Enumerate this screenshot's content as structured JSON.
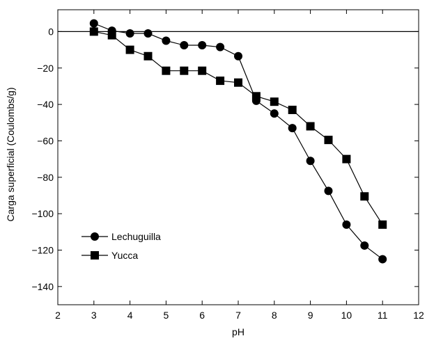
{
  "chart_data": {
    "type": "line",
    "title": "",
    "xlabel": "pH",
    "ylabel": "Carga superficial (Coulombs/g)",
    "xlim": [
      2,
      12
    ],
    "ylim": [
      -150,
      12
    ],
    "xticks": [
      2,
      3,
      4,
      5,
      6,
      7,
      8,
      9,
      10,
      11,
      12
    ],
    "yticks": [
      0,
      -20,
      -40,
      -60,
      -80,
      -100,
      -120,
      -140
    ],
    "x_tick_labels": [
      "2",
      "3",
      "4",
      "5",
      "6",
      "7",
      "8",
      "9",
      "10",
      "11",
      "12"
    ],
    "y_tick_labels": [
      "0",
      "−20",
      "−40",
      "−60",
      "−80",
      "−100",
      "−120",
      "−140"
    ],
    "reference_line_y": 0,
    "grid": false,
    "legend_position": "lower-left",
    "series": [
      {
        "name": "Lechuguilla",
        "marker": "circle",
        "color": "#000000",
        "x": [
          3,
          3.5,
          4,
          4.5,
          5,
          5.5,
          6,
          6.5,
          7,
          7.5,
          8,
          8.5,
          9,
          9.5,
          10,
          10.5,
          11
        ],
        "y": [
          4.5,
          0.5,
          -1,
          -1,
          -5,
          -7.5,
          -7.5,
          -8.5,
          -13.5,
          -38,
          -45,
          -53,
          -71,
          -87.5,
          -106,
          -117.5,
          -125
        ]
      },
      {
        "name": "Yucca",
        "marker": "square",
        "color": "#000000",
        "x": [
          3,
          3.5,
          4,
          4.5,
          5,
          5.5,
          6,
          6.5,
          7,
          7.5,
          8,
          8.5,
          9,
          9.5,
          10,
          10.5,
          11
        ],
        "y": [
          0,
          -2,
          -10,
          -13.5,
          -21.5,
          -21.5,
          -21.5,
          -27,
          -28,
          -35.5,
          -38.5,
          -43,
          -52,
          -59.5,
          -70,
          -90.5,
          -106
        ]
      }
    ]
  }
}
